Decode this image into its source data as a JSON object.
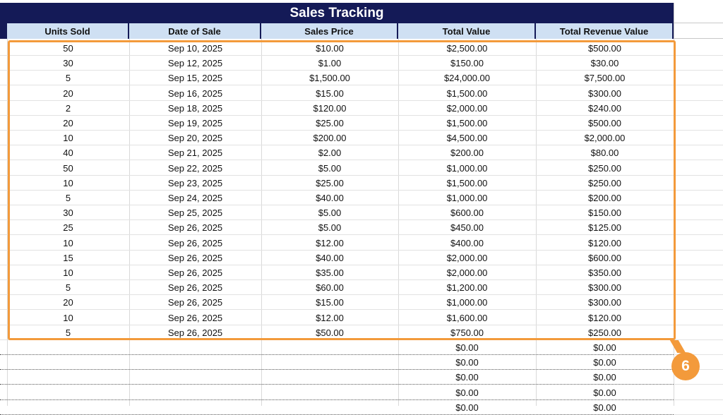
{
  "sheet": {
    "title": "Sales Tracking",
    "columns": [
      "Units Sold",
      "Date of Sale",
      "Sales Price",
      "Total Value",
      "Total Revenue Value"
    ],
    "rows": [
      [
        "50",
        "Sep 10, 2025",
        "$10.00",
        "$2,500.00",
        "$500.00"
      ],
      [
        "30",
        "Sep 12, 2025",
        "$1.00",
        "$150.00",
        "$30.00"
      ],
      [
        "5",
        "Sep 15, 2025",
        "$1,500.00",
        "$24,000.00",
        "$7,500.00"
      ],
      [
        "20",
        "Sep 16, 2025",
        "$15.00",
        "$1,500.00",
        "$300.00"
      ],
      [
        "2",
        "Sep 18, 2025",
        "$120.00",
        "$2,000.00",
        "$240.00"
      ],
      [
        "20",
        "Sep 19, 2025",
        "$25.00",
        "$1,500.00",
        "$500.00"
      ],
      [
        "10",
        "Sep 20, 2025",
        "$200.00",
        "$4,500.00",
        "$2,000.00"
      ],
      [
        "40",
        "Sep 21, 2025",
        "$2.00",
        "$200.00",
        "$80.00"
      ],
      [
        "50",
        "Sep 22, 2025",
        "$5.00",
        "$1,000.00",
        "$250.00"
      ],
      [
        "10",
        "Sep 23, 2025",
        "$25.00",
        "$1,500.00",
        "$250.00"
      ],
      [
        "5",
        "Sep 24, 2025",
        "$40.00",
        "$1,000.00",
        "$200.00"
      ],
      [
        "30",
        "Sep 25, 2025",
        "$5.00",
        "$600.00",
        "$150.00"
      ],
      [
        "25",
        "Sep 26, 2025",
        "$5.00",
        "$450.00",
        "$125.00"
      ],
      [
        "10",
        "Sep 26, 2025",
        "$12.00",
        "$400.00",
        "$120.00"
      ],
      [
        "15",
        "Sep 26, 2025",
        "$40.00",
        "$2,000.00",
        "$600.00"
      ],
      [
        "10",
        "Sep 26, 2025",
        "$35.00",
        "$2,000.00",
        "$350.00"
      ],
      [
        "5",
        "Sep 26, 2025",
        "$60.00",
        "$1,200.00",
        "$300.00"
      ],
      [
        "20",
        "Sep 26, 2025",
        "$15.00",
        "$1,000.00",
        "$300.00"
      ],
      [
        "10",
        "Sep 26, 2025",
        "$12.00",
        "$1,600.00",
        "$120.00"
      ],
      [
        "5",
        "Sep 26, 2025",
        "$50.00",
        "$750.00",
        "$250.00"
      ]
    ],
    "empty_rows": [
      [
        "",
        "",
        "",
        "$0.00",
        "$0.00"
      ],
      [
        "",
        "",
        "",
        "$0.00",
        "$0.00"
      ],
      [
        "",
        "",
        "",
        "$0.00",
        "$0.00"
      ],
      [
        "",
        "",
        "",
        "$0.00",
        "$0.00"
      ],
      [
        "",
        "",
        "",
        "$0.00",
        "$0.00"
      ]
    ]
  },
  "annotation": {
    "callout_number": "6",
    "highlight_color": "#f39a3b"
  },
  "colors": {
    "title_bg": "#141a57",
    "header_bg": "#cfe0f3"
  }
}
